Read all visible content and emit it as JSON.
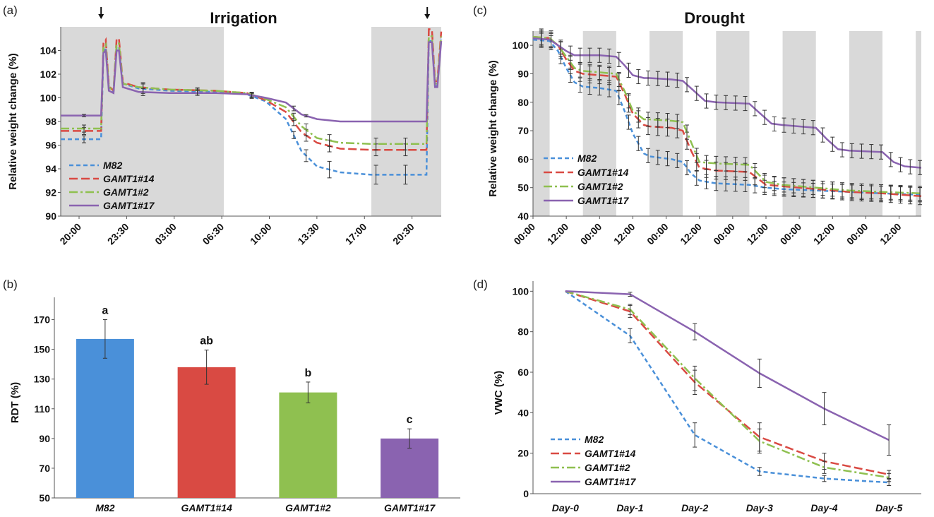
{
  "colors": {
    "M82": "#4a90d9",
    "GAMT1#14": "#d94a43",
    "GAMT1#2": "#8fc050",
    "GAMT1#17": "#8a63b0",
    "night_shade": "#d9d9d9"
  },
  "chart_data": [
    {
      "panel": "(a)",
      "type": "line",
      "title": "Irrigation",
      "xlabel": "",
      "ylabel": "Relative weight change (%)",
      "ylim": [
        90,
        106
      ],
      "yticks": [
        90,
        92,
        94,
        96,
        98,
        100,
        102,
        104
      ],
      "x_tick_labels": [
        "20:00",
        "23:30",
        "03:00",
        "06:30",
        "10:00",
        "13:30",
        "17:00",
        "20:30"
      ],
      "x_hours_range": [
        20,
        44.5
      ],
      "night_periods_hours": [
        [
          20,
          30.5
        ],
        [
          40,
          44.5
        ]
      ],
      "irrigation_arrows_hours": [
        22.6,
        43.6
      ],
      "legend": [
        "M82",
        "GAMT1#14",
        "GAMT1#2",
        "GAMT1#17"
      ],
      "legend_position": "bottom-left",
      "series": [
        {
          "name": "M82",
          "x": [
            20,
            22.6,
            22.75,
            22.9,
            23.1,
            23.4,
            23.6,
            23.75,
            24.0,
            25,
            27,
            30,
            32,
            33.2,
            34.5,
            35.5,
            36.5,
            38,
            40,
            42,
            43.55,
            43.7,
            43.9,
            44.1,
            44.25,
            44.5
          ],
          "y": [
            96.5,
            96.5,
            103.7,
            104.2,
            100.8,
            100.5,
            104.3,
            104.3,
            101.2,
            100.8,
            100.6,
            100.5,
            100.3,
            99.7,
            98.2,
            95.5,
            94.2,
            93.7,
            93.5,
            93.5,
            93.5,
            104.8,
            104.8,
            101.0,
            101.0,
            105.0
          ],
          "err": {
            "21.5": 0.3,
            "25.3": 0.4,
            "28.8": 0.2,
            "32.3": 0.2,
            "35.0": 0.3,
            "35.8": 0.5,
            "37.3": 0.7,
            "40.3": 0.8,
            "42.2": 0.8
          }
        },
        {
          "name": "GAMT1#14",
          "x": [
            20,
            22.6,
            22.75,
            22.9,
            23.1,
            23.4,
            23.6,
            23.75,
            24.0,
            25,
            27,
            30,
            32,
            33.2,
            34.5,
            35.5,
            36.5,
            38,
            40,
            42,
            43.55,
            43.7,
            43.9,
            44.1,
            44.25,
            44.5
          ],
          "y": [
            97.2,
            97.2,
            104.6,
            104.9,
            101.0,
            100.6,
            105.0,
            105.0,
            101.3,
            100.9,
            100.7,
            100.6,
            100.4,
            99.8,
            98.8,
            97.1,
            96.2,
            95.7,
            95.6,
            95.6,
            95.6,
            105.8,
            105.8,
            101.4,
            101.4,
            105.6
          ],
          "err": {
            "21.5": 0.3,
            "25.3": 0.4,
            "28.8": 0.2,
            "32.3": 0.2,
            "35.0": 0.3,
            "35.8": 0.5,
            "37.3": 0.5,
            "40.3": 0.5,
            "42.2": 0.5
          }
        },
        {
          "name": "GAMT1#2",
          "x": [
            20,
            22.6,
            22.75,
            22.9,
            23.1,
            23.4,
            23.6,
            23.75,
            24.0,
            25,
            27,
            30,
            32,
            33.2,
            34.5,
            35.5,
            36.5,
            38,
            40,
            42,
            43.55,
            43.7,
            43.9,
            44.1,
            44.25,
            44.5
          ],
          "y": [
            97.4,
            97.4,
            104.2,
            104.5,
            100.9,
            100.6,
            104.6,
            104.6,
            101.2,
            100.9,
            100.7,
            100.6,
            100.4,
            99.9,
            99.2,
            97.6,
            96.6,
            96.2,
            96.1,
            96.1,
            96.1,
            105.2,
            105.2,
            101.2,
            101.2,
            105.2
          ],
          "err": {
            "21.5": 0.3,
            "25.3": 0.4,
            "28.8": 0.2,
            "32.3": 0.2,
            "35.0": 0.3,
            "35.8": 0.5,
            "37.3": 0.5,
            "40.3": 0.5,
            "42.2": 0.5
          }
        },
        {
          "name": "GAMT1#17",
          "x": [
            20,
            22.6,
            22.75,
            22.9,
            23.1,
            23.4,
            23.6,
            23.75,
            24.0,
            25,
            27,
            30,
            32,
            33.2,
            34.5,
            35.5,
            36.5,
            38,
            40,
            42,
            43.55,
            43.7,
            43.9,
            44.1,
            44.25,
            44.5
          ],
          "y": [
            98.5,
            98.5,
            103.8,
            104.0,
            100.6,
            100.4,
            104.0,
            104.0,
            100.9,
            100.5,
            100.4,
            100.4,
            100.3,
            100.0,
            99.6,
            98.6,
            98.2,
            98.0,
            98.0,
            98.0,
            98.0,
            104.7,
            104.7,
            100.9,
            100.9,
            104.8
          ],
          "err": {
            "21.5": 0.1,
            "25.3": 0.3,
            "28.8": 0.2,
            "32.3": 0.2,
            "35.0": 0.2,
            "35.8": 0.1
          }
        }
      ]
    },
    {
      "panel": "(b)",
      "type": "bar",
      "title": "",
      "xlabel": "",
      "ylabel": "RDT (%)",
      "ylim": [
        50,
        185
      ],
      "yticks": [
        50,
        70,
        90,
        110,
        130,
        150,
        170
      ],
      "categories": [
        "M82",
        "GAMT1#14",
        "GAMT1#2",
        "GAMT1#17"
      ],
      "values": [
        157,
        138,
        121,
        90
      ],
      "errors": [
        13,
        11.5,
        7,
        6.5
      ],
      "significance": [
        "a",
        "ab",
        "b",
        "c"
      ]
    },
    {
      "panel": "(c)",
      "type": "line",
      "title": "Drought",
      "xlabel": "",
      "ylabel": "Relative weight change (%)",
      "ylim": [
        40,
        105
      ],
      "yticks": [
        40,
        50,
        60,
        70,
        80,
        90,
        100
      ],
      "x_tick_labels": [
        "00:00",
        "12:00",
        "00:00",
        "12:00",
        "00:00",
        "12:00",
        "00:00",
        "12:00",
        "00:00",
        "12:00",
        "00:00",
        "12:00"
      ],
      "x_hours_range": [
        0,
        140
      ],
      "night_periods_hours": [
        [
          0,
          6
        ],
        [
          18,
          30
        ],
        [
          42,
          54
        ],
        [
          66,
          78
        ],
        [
          90,
          102
        ],
        [
          114,
          126
        ],
        [
          138,
          140
        ]
      ],
      "legend": [
        "M82",
        "GAMT1#14",
        "GAMT1#2",
        "GAMT1#17"
      ],
      "legend_position": "bottom-left",
      "series": [
        {
          "name": "M82",
          "x": [
            0,
            6,
            9,
            12,
            15,
            18,
            24,
            30,
            33,
            36,
            40,
            42,
            50,
            54,
            57,
            60,
            66,
            78,
            84,
            90,
            102,
            114,
            126,
            140
          ],
          "y": [
            102,
            101.5,
            98,
            92,
            87,
            85.5,
            85,
            84,
            77,
            69,
            62,
            61,
            60,
            59,
            55,
            52.5,
            51.5,
            51,
            50,
            49.5,
            49,
            48.5,
            48,
            47.5
          ],
          "err": 2.5
        },
        {
          "name": "GAMT1#14",
          "x": [
            0,
            6,
            9,
            12,
            15,
            18,
            24,
            30,
            33,
            36,
            40,
            42,
            50,
            54,
            57,
            60,
            66,
            78,
            84,
            90,
            102,
            114,
            126,
            140
          ],
          "y": [
            103,
            102.5,
            100,
            95,
            91,
            90,
            89.5,
            89,
            83,
            76,
            72,
            71.5,
            71,
            70,
            63,
            57,
            56,
            55.5,
            51,
            50.5,
            49.5,
            48.5,
            48,
            47
          ],
          "err": 3
        },
        {
          "name": "GAMT1#2",
          "x": [
            0,
            6,
            9,
            12,
            15,
            18,
            24,
            30,
            33,
            36,
            40,
            42,
            50,
            54,
            57,
            60,
            66,
            78,
            84,
            90,
            102,
            114,
            126,
            140
          ],
          "y": [
            103,
            102.5,
            100,
            96,
            92,
            91,
            90.5,
            90,
            84,
            77,
            74,
            74,
            73.5,
            73,
            66,
            59,
            58.5,
            58,
            52,
            51,
            50,
            49,
            48.5,
            48
          ],
          "err": 2.5
        },
        {
          "name": "GAMT1#17",
          "x": [
            0,
            6,
            9,
            12,
            15,
            18,
            24,
            30,
            33,
            36,
            40,
            42,
            50,
            54,
            58,
            62,
            66,
            78,
            82,
            86,
            90,
            102,
            106,
            110,
            114,
            126,
            130,
            134,
            140
          ],
          "y": [
            102.5,
            102,
            100,
            98,
            96.5,
            96.5,
            96.5,
            96,
            93,
            89.5,
            88.5,
            88.5,
            88,
            87.5,
            84,
            80.5,
            80,
            79.5,
            76,
            72.5,
            72,
            71,
            67,
            63.5,
            63,
            62.5,
            59,
            57.5,
            57
          ],
          "err": 2.5
        }
      ]
    },
    {
      "panel": "(d)",
      "type": "line",
      "title": "",
      "xlabel": "",
      "ylabel": "VWC (%)",
      "ylim": [
        0,
        105
      ],
      "yticks": [
        0,
        20,
        40,
        60,
        80,
        100
      ],
      "categories": [
        "Day-0",
        "Day-1",
        "Day-2",
        "Day-3",
        "Day-4",
        "Day-5"
      ],
      "legend": [
        "M82",
        "GAMT1#14",
        "GAMT1#2",
        "GAMT1#17"
      ],
      "legend_position": "bottom-left",
      "series": [
        {
          "name": "M82",
          "values": [
            100,
            78,
            29,
            11,
            7.5,
            5.5
          ],
          "errors": [
            0,
            3.5,
            6,
            2,
            1.5,
            1.5
          ]
        },
        {
          "name": "GAMT1#14",
          "values": [
            100,
            90,
            55,
            28,
            16,
            9.5
          ],
          "errors": [
            0,
            3,
            6,
            7,
            4,
            2
          ]
        },
        {
          "name": "GAMT1#2",
          "values": [
            100,
            91,
            57,
            26,
            13,
            8
          ],
          "errors": [
            0,
            2.5,
            6,
            6,
            3,
            2
          ]
        },
        {
          "name": "GAMT1#17",
          "values": [
            100,
            98.5,
            80,
            59.5,
            42,
            26.5
          ],
          "errors": [
            0,
            1,
            4,
            7,
            8,
            7.5
          ]
        }
      ]
    }
  ]
}
